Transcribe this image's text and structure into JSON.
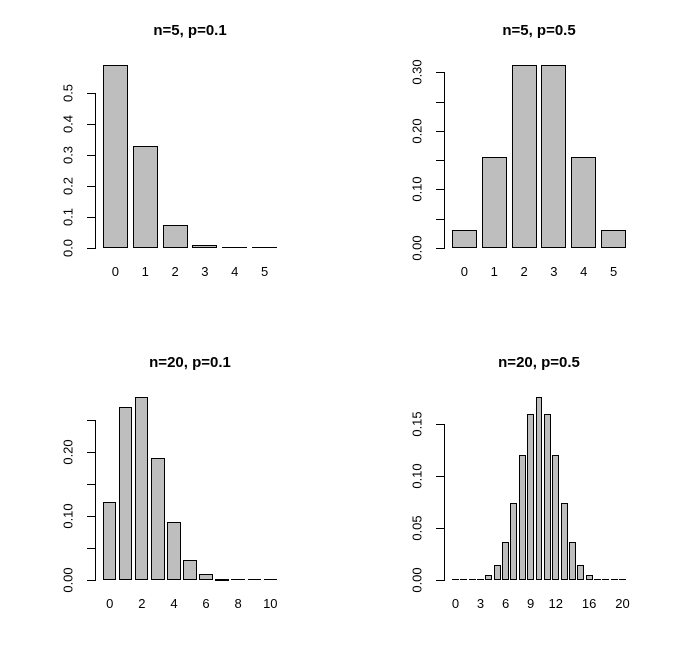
{
  "figure": {
    "background": "#ffffff",
    "text_color": "#000000",
    "bar_fill": "#bebebe",
    "bar_border": "#000000",
    "grid": false,
    "legend": "none",
    "layout": "2x2 grid of binomial distribution barplots"
  },
  "chart_data": [
    {
      "type": "bar",
      "title": "n=5, p=0.1",
      "xlabel": "",
      "ylabel": "",
      "categories": [
        "0",
        "1",
        "2",
        "3",
        "4",
        "5"
      ],
      "values": [
        0.59049,
        0.32805,
        0.0729,
        0.0081,
        0.00045,
        1e-05
      ],
      "x_ticks": [
        {
          "index": 0,
          "label": "0"
        },
        {
          "index": 1,
          "label": "1"
        },
        {
          "index": 2,
          "label": "2"
        },
        {
          "index": 3,
          "label": "3"
        },
        {
          "index": 4,
          "label": "4"
        },
        {
          "index": 5,
          "label": "5"
        }
      ],
      "y_ticks": [
        {
          "value": 0.0,
          "label": "0.0"
        },
        {
          "value": 0.1,
          "label": "0.1"
        },
        {
          "value": 0.2,
          "label": "0.2"
        },
        {
          "value": 0.3,
          "label": "0.3"
        },
        {
          "value": 0.4,
          "label": "0.4"
        },
        {
          "value": 0.5,
          "label": "0.5"
        }
      ],
      "y_axis_range": [
        0.0,
        0.5
      ]
    },
    {
      "type": "bar",
      "title": "n=5, p=0.5",
      "xlabel": "",
      "ylabel": "",
      "categories": [
        "0",
        "1",
        "2",
        "3",
        "4",
        "5"
      ],
      "values": [
        0.03125,
        0.15625,
        0.3125,
        0.3125,
        0.15625,
        0.03125
      ],
      "x_ticks": [
        {
          "index": 0,
          "label": "0"
        },
        {
          "index": 1,
          "label": "1"
        },
        {
          "index": 2,
          "label": "2"
        },
        {
          "index": 3,
          "label": "3"
        },
        {
          "index": 4,
          "label": "4"
        },
        {
          "index": 5,
          "label": "5"
        }
      ],
      "y_ticks": [
        {
          "value": 0.0,
          "label": "0.00"
        },
        {
          "value": 0.05,
          "label": ""
        },
        {
          "value": 0.1,
          "label": "0.10"
        },
        {
          "value": 0.15,
          "label": ""
        },
        {
          "value": 0.2,
          "label": "0.20"
        },
        {
          "value": 0.25,
          "label": ""
        },
        {
          "value": 0.3,
          "label": "0.30"
        }
      ],
      "y_axis_range": [
        0.0,
        0.3
      ]
    },
    {
      "type": "bar",
      "title": "n=20, p=0.1",
      "xlabel": "",
      "ylabel": "",
      "categories": [
        "0",
        "1",
        "2",
        "3",
        "4",
        "5",
        "6",
        "7",
        "8",
        "9",
        "10"
      ],
      "values": [
        0.121577,
        0.27017,
        0.28518,
        0.19012,
        0.089779,
        0.031921,
        0.008867,
        0.00197,
        0.000356,
        5.3e-05,
        6e-06
      ],
      "x_ticks": [
        {
          "index": 0,
          "label": "0"
        },
        {
          "index": 2,
          "label": "2"
        },
        {
          "index": 4,
          "label": "4"
        },
        {
          "index": 6,
          "label": "6"
        },
        {
          "index": 8,
          "label": "8"
        },
        {
          "index": 10,
          "label": "10"
        }
      ],
      "y_ticks": [
        {
          "value": 0.0,
          "label": "0.00"
        },
        {
          "value": 0.05,
          "label": ""
        },
        {
          "value": 0.1,
          "label": "0.10"
        },
        {
          "value": 0.15,
          "label": ""
        },
        {
          "value": 0.2,
          "label": "0.20"
        },
        {
          "value": 0.25,
          "label": ""
        }
      ],
      "y_axis_range": [
        0.0,
        0.25
      ]
    },
    {
      "type": "bar",
      "title": "n=20, p=0.5",
      "xlabel": "",
      "ylabel": "",
      "categories": [
        "0",
        "1",
        "2",
        "3",
        "4",
        "5",
        "6",
        "7",
        "8",
        "9",
        "10",
        "11",
        "12",
        "13",
        "14",
        "15",
        "16",
        "17",
        "18",
        "19",
        "20"
      ],
      "values": [
        1e-06,
        1.9e-05,
        0.000181,
        0.001087,
        0.004621,
        0.014786,
        0.036964,
        0.073929,
        0.120134,
        0.160179,
        0.176197,
        0.160179,
        0.120134,
        0.073929,
        0.036964,
        0.014786,
        0.004621,
        0.001087,
        0.000181,
        1.9e-05,
        1e-06
      ],
      "x_ticks": [
        {
          "index": 0,
          "label": "0"
        },
        {
          "index": 3,
          "label": "3"
        },
        {
          "index": 6,
          "label": "6"
        },
        {
          "index": 9,
          "label": "9"
        },
        {
          "index": 12,
          "label": "12"
        },
        {
          "index": 16,
          "label": "16"
        },
        {
          "index": 20,
          "label": "20"
        }
      ],
      "y_ticks": [
        {
          "value": 0.0,
          "label": "0.00"
        },
        {
          "value": 0.05,
          "label": "0.05"
        },
        {
          "value": 0.1,
          "label": "0.10"
        },
        {
          "value": 0.15,
          "label": "0.15"
        }
      ],
      "y_axis_range": [
        0.0,
        0.15
      ]
    }
  ]
}
